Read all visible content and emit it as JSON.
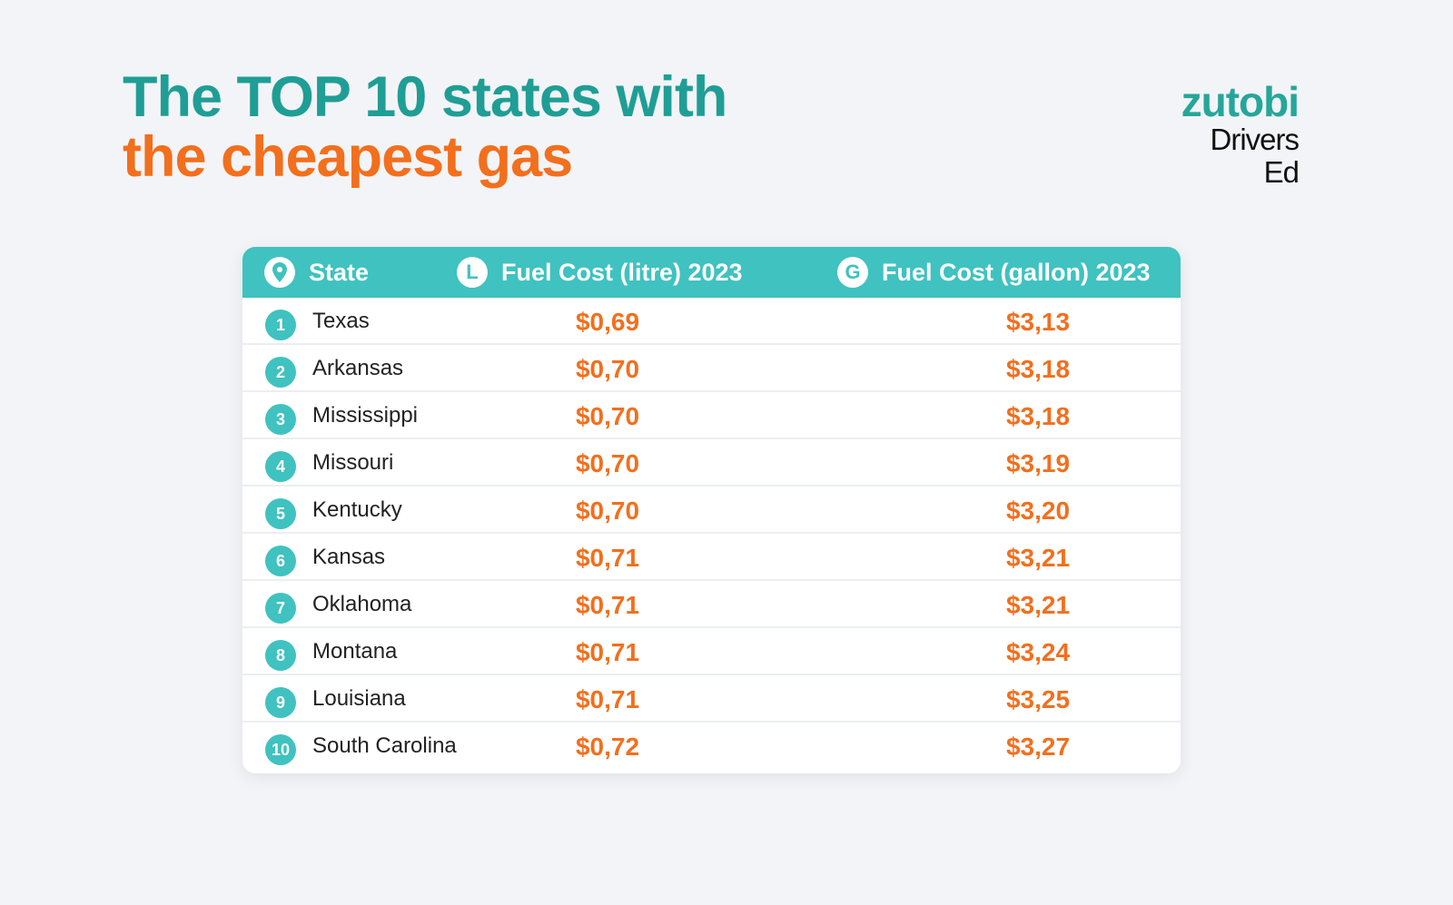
{
  "title": {
    "line1": "The TOP 10 states with",
    "line2": "the cheapest gas"
  },
  "logo": {
    "brand": "zutobi",
    "sub": "Drivers Ed"
  },
  "table": {
    "headers": {
      "state": "State",
      "litre": "Fuel Cost (litre) 2023",
      "gallon": "Fuel Cost (gallon) 2023",
      "litre_icon": "L",
      "gallon_icon": "G",
      "state_icon": "location-pin-icon"
    },
    "rows": [
      {
        "rank": "1",
        "state": "Texas",
        "litre": "$0,69",
        "gallon": "$3,13"
      },
      {
        "rank": "2",
        "state": "Arkansas",
        "litre": "$0,70",
        "gallon": "$3,18"
      },
      {
        "rank": "3",
        "state": "Mississippi",
        "litre": "$0,70",
        "gallon": "$3,18"
      },
      {
        "rank": "4",
        "state": "Missouri",
        "litre": "$0,70",
        "gallon": "$3,19"
      },
      {
        "rank": "5",
        "state": "Kentucky",
        "litre": "$0,70",
        "gallon": "$3,20"
      },
      {
        "rank": "6",
        "state": "Kansas",
        "litre": "$0,71",
        "gallon": "$3,21"
      },
      {
        "rank": "7",
        "state": "Oklahoma",
        "litre": "$0,71",
        "gallon": "$3,21"
      },
      {
        "rank": "8",
        "state": "Montana",
        "litre": "$0,71",
        "gallon": "$3,24"
      },
      {
        "rank": "9",
        "state": "Louisiana",
        "litre": "$0,71",
        "gallon": "$3,25"
      },
      {
        "rank": "10",
        "state": "South Carolina",
        "litre": "$0,72",
        "gallon": "$3,27"
      }
    ]
  },
  "colors": {
    "teal": "#3fc2c0",
    "orange": "#f26f1d"
  }
}
